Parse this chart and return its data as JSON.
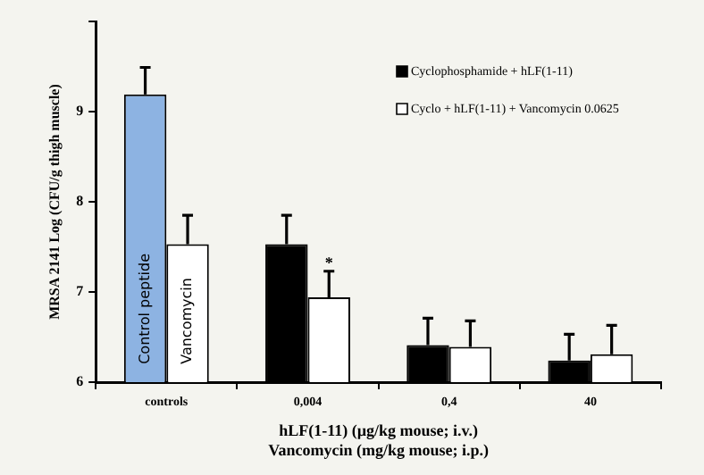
{
  "chart_data": {
    "type": "bar",
    "ylabel": "MRSA 2141 Log (CFU/g thigh muscle)",
    "xlabel": "hLF(1-11) (µg/kg mouse; i.v.)\nVancomycin (mg/kg mouse; i.p.)",
    "categories": [
      "controls",
      "0,004",
      "0,4",
      "40"
    ],
    "series": [
      {
        "name": "Cyclophosphamide + hLF(1-11)",
        "color": "#000000",
        "colors": [
          "#8db3e2",
          "#000000",
          "#000000",
          "#000000"
        ],
        "values": [
          9.19,
          7.53,
          6.41,
          6.24
        ],
        "errors": [
          [
            9.19,
            9.49
          ],
          [
            7.53,
            7.85
          ],
          [
            6.41,
            6.71
          ],
          [
            6.24,
            6.53
          ]
        ]
      },
      {
        "name": "Cyclo + hLF(1-11) + Vancomycin 0.0625",
        "color": "#ffffff",
        "values": [
          7.53,
          6.94,
          6.39,
          6.31
        ],
        "errors": [
          [
            7.53,
            7.85
          ],
          [
            6.94,
            7.23
          ],
          [
            6.39,
            6.68
          ],
          [
            6.31,
            6.63
          ]
        ]
      }
    ],
    "ylim": [
      6,
      10
    ],
    "yticks": [
      6,
      7,
      8,
      9,
      {
        "value": 10,
        "label": null
      }
    ],
    "annotations": [
      {
        "text": "Control peptide",
        "x": "controls",
        "y": 6.2
      },
      {
        "text": "Vancomycin",
        "x": "controls",
        "y": 6.2
      },
      {
        "text": "*",
        "x": "0,004",
        "y": 7.3
      }
    ],
    "grid": false,
    "legend": "top right"
  }
}
